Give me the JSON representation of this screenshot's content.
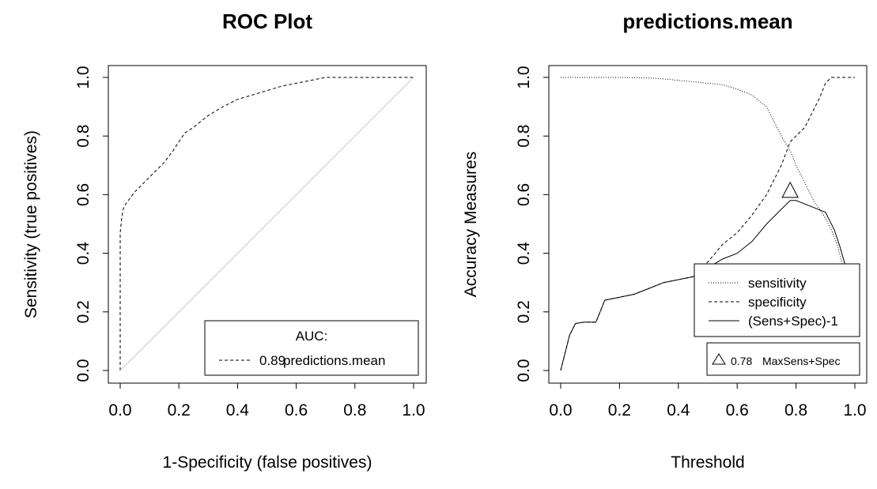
{
  "chart_data": [
    {
      "type": "line",
      "title": "ROC Plot",
      "xlabel": "1-Specificity (false positives)",
      "ylabel": "Sensitivity (true positives)",
      "xlim": [
        0,
        1
      ],
      "ylim": [
        0,
        1
      ],
      "xticks": [
        "0.0",
        "0.2",
        "0.4",
        "0.6",
        "0.8",
        "1.0"
      ],
      "yticks": [
        "0.0",
        "0.2",
        "0.4",
        "0.6",
        "0.8",
        "1.0"
      ],
      "grid": false,
      "legend": {
        "placement": "bottom-right",
        "title": "AUC:",
        "entries": [
          {
            "value": "0.89",
            "label": "predictions.mean"
          }
        ]
      },
      "series": [
        {
          "name": "predictions.mean",
          "style": "dashed",
          "x": [
            0.0,
            0.0,
            0.005,
            0.01,
            0.02,
            0.05,
            0.08,
            0.1,
            0.15,
            0.18,
            0.2,
            0.22,
            0.25,
            0.3,
            0.35,
            0.4,
            0.45,
            0.5,
            0.55,
            0.6,
            0.65,
            0.7,
            0.75,
            0.8,
            0.85,
            0.9,
            0.95,
            1.0
          ],
          "y": [
            0.0,
            0.47,
            0.52,
            0.55,
            0.57,
            0.61,
            0.64,
            0.66,
            0.71,
            0.75,
            0.78,
            0.81,
            0.83,
            0.87,
            0.9,
            0.925,
            0.94,
            0.955,
            0.97,
            0.98,
            0.99,
            1.0,
            1.0,
            1.0,
            1.0,
            1.0,
            1.0,
            1.0
          ]
        },
        {
          "style": "reference-diagonal",
          "x": [
            0,
            1
          ],
          "y": [
            0,
            1
          ]
        }
      ]
    },
    {
      "type": "line",
      "title": "predictions.mean",
      "xlabel": "Threshold",
      "ylabel": "Accuracy Measures",
      "xlim": [
        0,
        1
      ],
      "ylim": [
        0,
        1
      ],
      "xticks": [
        "0.0",
        "0.2",
        "0.4",
        "0.6",
        "0.8",
        "1.0"
      ],
      "yticks": [
        "0.0",
        "0.2",
        "0.4",
        "0.6",
        "0.8",
        "1.0"
      ],
      "grid": false,
      "legend": {
        "placement": "bottom-right",
        "entries": [
          {
            "label": "sensitivity",
            "style": "dotted"
          },
          {
            "label": "specificity",
            "style": "dashed"
          },
          {
            "label": "(Sens+Spec)-1",
            "style": "solid"
          }
        ]
      },
      "annotation": {
        "marker": "triangle",
        "value": "0.78",
        "label": "MaxSens+Spec",
        "x": 0.78,
        "y": 0.615
      },
      "series": [
        {
          "name": "sensitivity",
          "style": "dotted",
          "x": [
            0.0,
            0.1,
            0.2,
            0.3,
            0.35,
            0.4,
            0.5,
            0.55,
            0.6,
            0.65,
            0.7,
            0.72,
            0.75,
            0.78,
            0.8,
            0.82,
            0.84,
            0.86,
            0.88,
            0.9,
            0.92,
            0.94,
            0.96,
            0.97
          ],
          "y": [
            1.0,
            1.0,
            1.0,
            0.998,
            0.995,
            0.99,
            0.98,
            0.975,
            0.96,
            0.94,
            0.9,
            0.86,
            0.8,
            0.75,
            0.7,
            0.66,
            0.62,
            0.58,
            0.55,
            0.52,
            0.48,
            0.43,
            0.35,
            0.3
          ]
        },
        {
          "name": "specificity",
          "style": "dashed",
          "x": [
            0.0,
            0.03,
            0.05,
            0.08,
            0.12,
            0.15,
            0.2,
            0.25,
            0.3,
            0.35,
            0.4,
            0.45,
            0.5,
            0.55,
            0.6,
            0.65,
            0.7,
            0.75,
            0.78,
            0.8,
            0.83,
            0.85,
            0.88,
            0.9,
            0.92,
            0.95,
            1.0
          ],
          "y": [
            0.0,
            0.12,
            0.16,
            0.165,
            0.165,
            0.24,
            0.25,
            0.26,
            0.28,
            0.3,
            0.31,
            0.32,
            0.37,
            0.43,
            0.47,
            0.53,
            0.6,
            0.7,
            0.78,
            0.8,
            0.83,
            0.87,
            0.93,
            0.98,
            1.0,
            1.0,
            1.0
          ]
        },
        {
          "name": "(Sens+Spec)-1",
          "style": "solid",
          "x": [
            0.0,
            0.03,
            0.05,
            0.08,
            0.12,
            0.15,
            0.2,
            0.25,
            0.3,
            0.35,
            0.4,
            0.45,
            0.5,
            0.55,
            0.6,
            0.65,
            0.7,
            0.75,
            0.78,
            0.8,
            0.85,
            0.9,
            0.93,
            0.95,
            0.97
          ],
          "y": [
            0.0,
            0.12,
            0.16,
            0.165,
            0.165,
            0.24,
            0.25,
            0.26,
            0.28,
            0.3,
            0.31,
            0.32,
            0.35,
            0.38,
            0.4,
            0.44,
            0.5,
            0.55,
            0.58,
            0.58,
            0.56,
            0.54,
            0.48,
            0.42,
            0.35
          ]
        }
      ]
    }
  ]
}
